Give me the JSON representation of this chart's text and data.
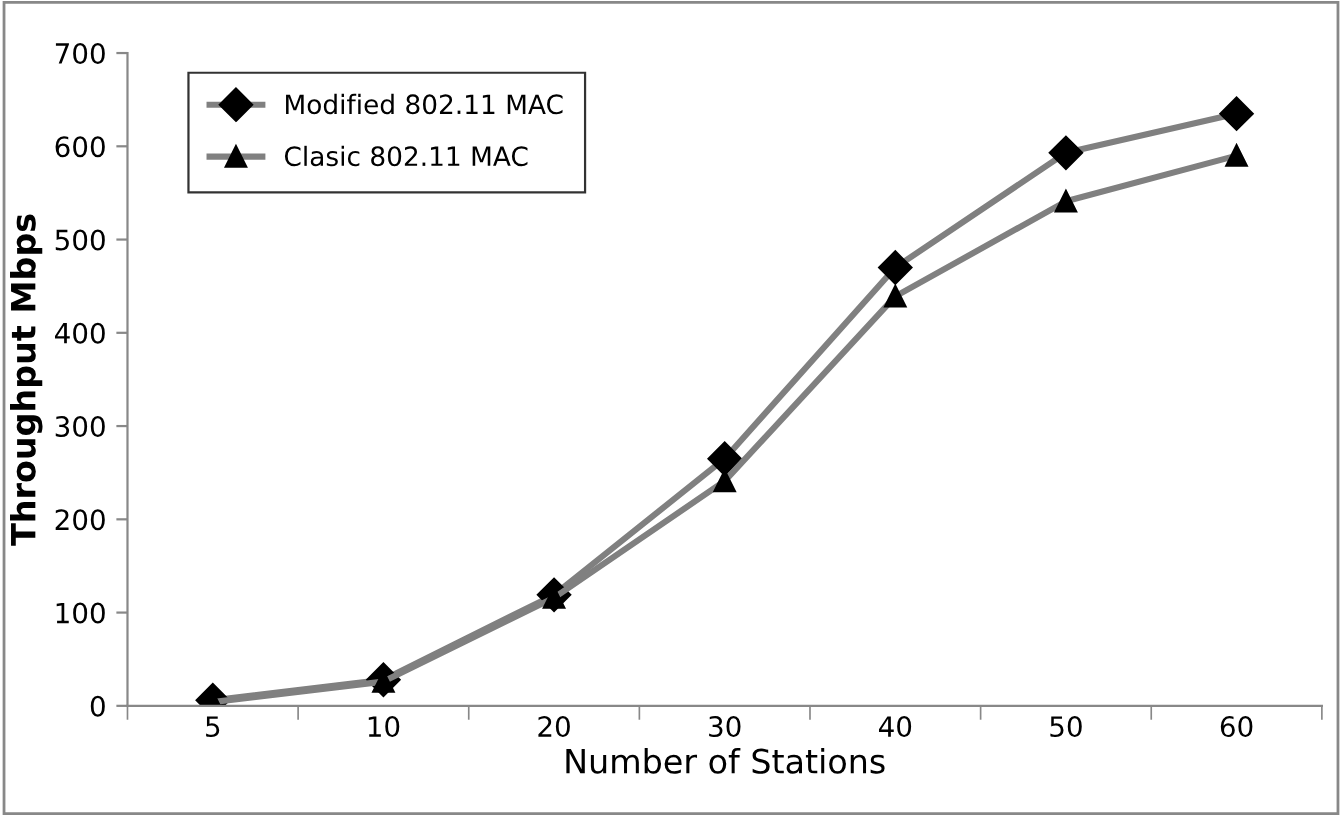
{
  "chart_data": {
    "type": "line",
    "xlabel": "Number of Stations",
    "ylabel": "Throughput Mbps",
    "categories": [
      "5",
      "10",
      "20",
      "30",
      "40",
      "50",
      "60"
    ],
    "series": [
      {
        "name": "Modified 802.11 MAC",
        "color": "#808080",
        "marker": "diamond",
        "values": [
          6,
          28,
          119,
          265,
          470,
          593,
          635
        ]
      },
      {
        "name": "Clasic 802.11 MAC",
        "color": "#808080",
        "marker": "triangle",
        "values": [
          4,
          26,
          116,
          241,
          439,
          541,
          590
        ]
      }
    ],
    "ylim": [
      0,
      700
    ],
    "yticks": [
      0,
      100,
      200,
      300,
      400,
      500,
      600,
      700
    ],
    "grid": false,
    "legend": "top left",
    "line_style": "solid"
  }
}
